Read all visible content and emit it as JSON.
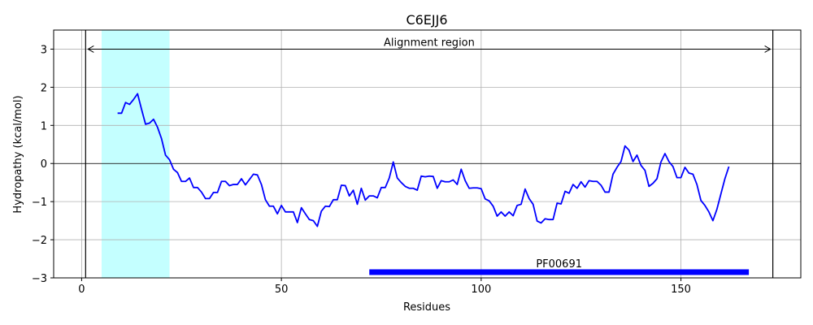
{
  "chart_data": {
    "type": "line",
    "title": "C6EJJ6",
    "xlabel": "Residues",
    "ylabel": "Hydropathy (kcal/mol)",
    "xlim": [
      -7,
      180
    ],
    "ylim": [
      -3,
      3.5
    ],
    "xticks": [
      0,
      50,
      100,
      150
    ],
    "yticks": [
      -3,
      -2,
      -1,
      0,
      1,
      2,
      3
    ],
    "grid": true,
    "series": [
      {
        "color": "#0000ff",
        "x": [
          9,
          10,
          11,
          12,
          13,
          14,
          15,
          16,
          17,
          18,
          19,
          20,
          21,
          22,
          23,
          24,
          25,
          26,
          27,
          28,
          29,
          30,
          31,
          32,
          33,
          34,
          35,
          36,
          37,
          38,
          39,
          40,
          41,
          42,
          43,
          44,
          45,
          46,
          47,
          48,
          49,
          50,
          51,
          52,
          53,
          54,
          55,
          56,
          57,
          58,
          59,
          60,
          61,
          62,
          63,
          64,
          65,
          66,
          67,
          68,
          69,
          70,
          71,
          72,
          73,
          74,
          75,
          76,
          77,
          78,
          79,
          80,
          81,
          82,
          83,
          84,
          85,
          86,
          87,
          88,
          89,
          90,
          91,
          92,
          93,
          94,
          95,
          96,
          97,
          98,
          99,
          100,
          101,
          102,
          103,
          104,
          105,
          106,
          107,
          108,
          109,
          110,
          111,
          112,
          113,
          114,
          115,
          116,
          117,
          118,
          119,
          120,
          121,
          122,
          123,
          124,
          125,
          126,
          127,
          128,
          129,
          130,
          131,
          132,
          133,
          134,
          135,
          136,
          137,
          138,
          139,
          140,
          141,
          142,
          143,
          144,
          145,
          146,
          147,
          148,
          149,
          150,
          151,
          152,
          153,
          154,
          155,
          156,
          157,
          158,
          159,
          160,
          161,
          162
        ],
        "y": [
          1.32,
          1.32,
          1.6,
          1.55,
          1.68,
          1.83,
          1.42,
          1.03,
          1.06,
          1.16,
          0.95,
          0.65,
          0.22,
          0.1,
          -0.15,
          -0.24,
          -0.47,
          -0.47,
          -0.38,
          -0.63,
          -0.63,
          -0.75,
          -0.92,
          -0.92,
          -0.76,
          -0.76,
          -0.47,
          -0.47,
          -0.58,
          -0.55,
          -0.55,
          -0.4,
          -0.56,
          -0.42,
          -0.28,
          -0.3,
          -0.55,
          -0.95,
          -1.12,
          -1.12,
          -1.32,
          -1.1,
          -1.27,
          -1.27,
          -1.27,
          -1.55,
          -1.16,
          -1.32,
          -1.47,
          -1.5,
          -1.65,
          -1.25,
          -1.12,
          -1.13,
          -0.95,
          -0.95,
          -0.57,
          -0.58,
          -0.85,
          -0.7,
          -1.07,
          -0.65,
          -0.96,
          -0.85,
          -0.85,
          -0.9,
          -0.63,
          -0.63,
          -0.38,
          0.04,
          -0.38,
          -0.5,
          -0.6,
          -0.65,
          -0.65,
          -0.7,
          -0.33,
          -0.35,
          -0.33,
          -0.34,
          -0.65,
          -0.45,
          -0.48,
          -0.48,
          -0.43,
          -0.55,
          -0.15,
          -0.45,
          -0.65,
          -0.64,
          -0.64,
          -0.66,
          -0.93,
          -0.98,
          -1.12,
          -1.38,
          -1.27,
          -1.38,
          -1.27,
          -1.37,
          -1.1,
          -1.07,
          -0.67,
          -0.92,
          -1.07,
          -1.51,
          -1.56,
          -1.45,
          -1.47,
          -1.47,
          -1.04,
          -1.06,
          -0.73,
          -0.78,
          -0.55,
          -0.65,
          -0.48,
          -0.62,
          -0.45,
          -0.47,
          -0.47,
          -0.57,
          -0.75,
          -0.75,
          -0.28,
          -0.1,
          0.05,
          0.46,
          0.35,
          0.05,
          0.22,
          -0.05,
          -0.18,
          -0.6,
          -0.52,
          -0.4,
          0.04,
          0.26,
          0.05,
          -0.08,
          -0.37,
          -0.37,
          -0.1,
          -0.25,
          -0.28,
          -0.55,
          -0.97,
          -1.1,
          -1.27,
          -1.5,
          -1.2,
          -0.8,
          -0.4,
          -0.08
        ]
      }
    ],
    "shaded_region": {
      "x_start": 5,
      "x_end": 22,
      "color": "#c4ffff"
    },
    "alignment_region": {
      "label": "Alignment region",
      "x_start": 1,
      "x_end": 173,
      "y": 3
    },
    "domain_bar": {
      "label": "PF00691",
      "x_start": 72,
      "x_end": 167,
      "y": -2.85,
      "color": "#0000ff"
    }
  }
}
